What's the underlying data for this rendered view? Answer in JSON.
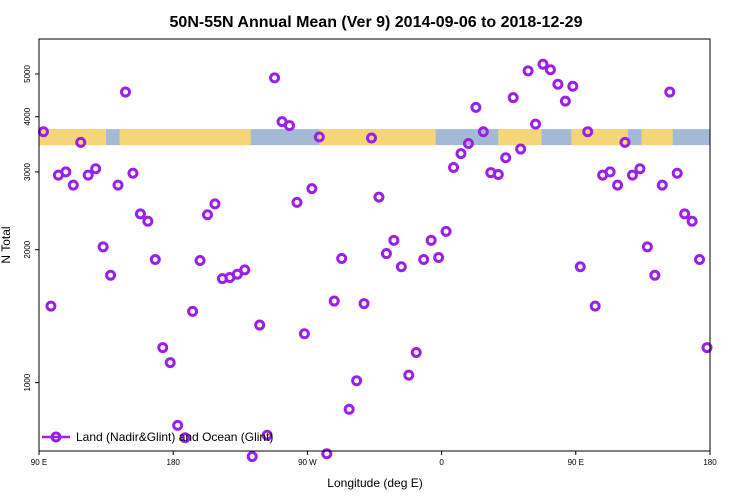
{
  "chart_data": {
    "type": "scatter",
    "title": "50N-55N Annual Mean (Ver 9)   2014-09-06 to 2018-12-29",
    "xlabel": "Longitude (deg E)",
    "ylabel": "N Total",
    "xlim": [
      90,
      540
    ],
    "ylim": [
      700,
      6000
    ],
    "y_scale": "log",
    "grid": false,
    "x_ticks": [
      {
        "value": 90,
        "label": "90 E"
      },
      {
        "value": 180,
        "label": "180"
      },
      {
        "value": 270,
        "label": "90 W"
      },
      {
        "value": 360,
        "label": "0"
      },
      {
        "value": 450,
        "label": "90 E"
      },
      {
        "value": 540,
        "label": "180"
      }
    ],
    "y_ticks": [
      {
        "value": 1000,
        "label": "1000"
      },
      {
        "value": 2000,
        "label": "2000"
      },
      {
        "value": 3000,
        "label": "3000"
      },
      {
        "value": 4000,
        "label": "4000"
      },
      {
        "value": 5000,
        "label": "5000"
      }
    ],
    "background_band": {
      "y_range": [
        3450,
        3750
      ],
      "base_color": "#a4b9d6",
      "land_color": "#f5d57a",
      "land_segments": [
        [
          90,
          135
        ],
        [
          144,
          232
        ],
        [
          278,
          356
        ],
        [
          398,
          427
        ],
        [
          447,
          485
        ],
        [
          494,
          515
        ]
      ]
    },
    "legend": {
      "position": "bottom-left",
      "label": "Land (Nadir&Glint) and Ocean (Glint)"
    },
    "series": [
      {
        "name": "Land (Nadir&Glint) and Ocean (Glint)",
        "color": "#9b1fe8",
        "x": [
          93,
          98,
          103,
          108,
          113,
          118,
          123,
          128,
          133,
          138,
          143,
          148,
          153,
          158,
          163,
          168,
          173,
          178,
          183,
          188,
          193,
          198,
          203,
          208,
          213,
          218,
          223,
          228,
          233,
          238,
          243,
          248,
          253,
          258,
          263,
          268,
          273,
          278,
          283,
          288,
          293,
          298,
          303,
          308,
          313,
          318,
          323,
          328,
          333,
          338,
          343,
          348,
          353,
          358,
          363,
          368,
          373,
          378,
          383,
          388,
          393,
          398,
          403,
          408,
          413,
          418,
          423,
          428,
          433,
          438,
          443,
          448,
          453,
          458,
          463,
          468,
          473,
          478,
          483,
          488,
          493,
          498,
          503,
          508,
          513,
          518,
          523,
          528,
          533,
          538
        ],
        "y": [
          3700,
          1490,
          2950,
          3000,
          2800,
          3500,
          2950,
          3050,
          2030,
          1750,
          2800,
          4550,
          2980,
          2410,
          2320,
          1900,
          1200,
          1110,
          800,
          750,
          1450,
          1890,
          2400,
          2540,
          1720,
          1730,
          1760,
          1800,
          680,
          1350,
          760,
          4900,
          3900,
          3820,
          2560,
          1290,
          2750,
          3600,
          690,
          1530,
          1910,
          870,
          1010,
          1510,
          3580,
          2630,
          1960,
          2100,
          1830,
          1040,
          1170,
          1900,
          2100,
          1920,
          2200,
          3070,
          3300,
          3480,
          4200,
          3700,
          2990,
          2960,
          3230,
          4420,
          3380,
          5080,
          3850,
          5260,
          5110,
          4740,
          4340,
          4690,
          1830,
          3700,
          1490,
          2950,
          3000,
          2800,
          3500,
          2950,
          3050,
          2030,
          1750,
          2800,
          4550,
          2980,
          2410,
          2320,
          1900,
          1200
        ]
      }
    ]
  }
}
